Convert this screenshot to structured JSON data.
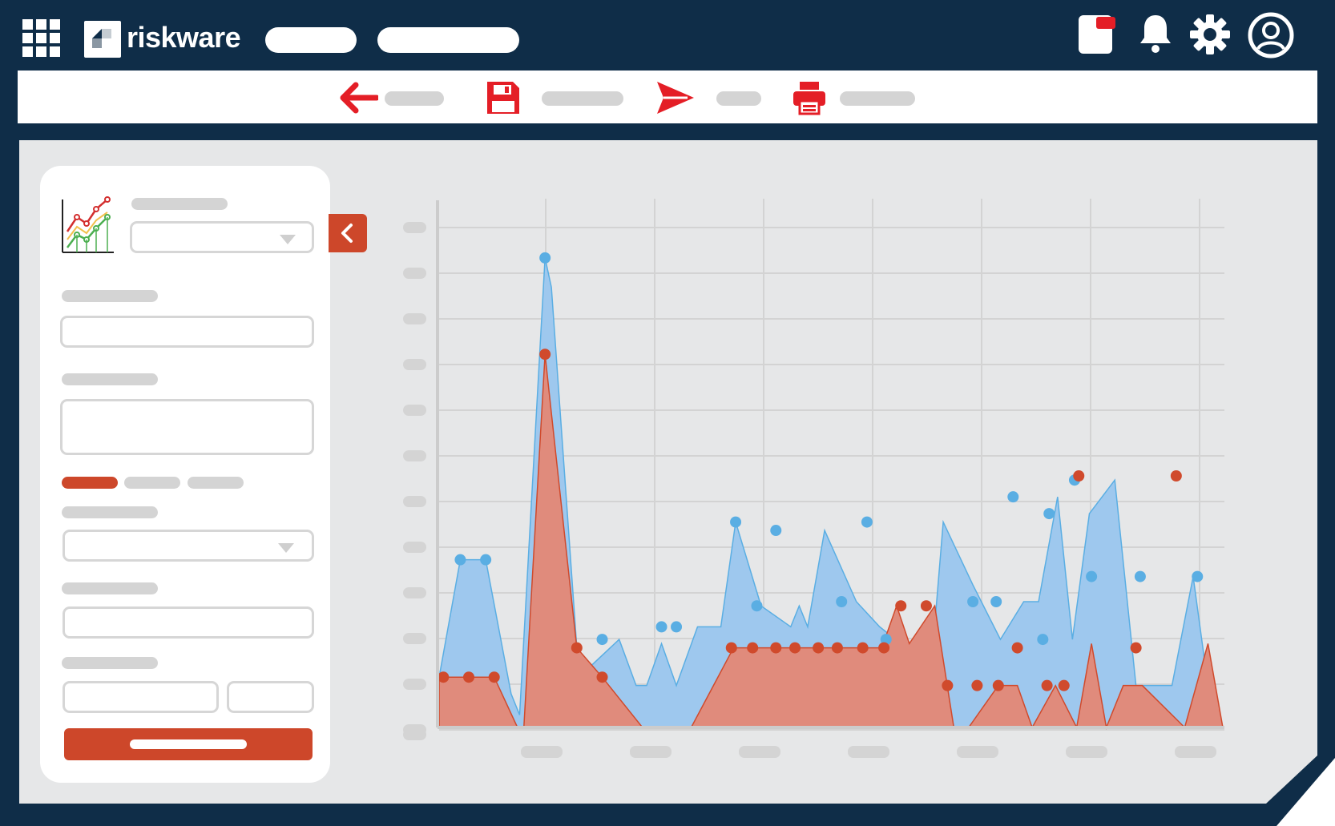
{
  "app": {
    "brand_name": "riskware"
  },
  "header_icons": [
    "grid-icon",
    "window-icon",
    "bell-icon",
    "gear-icon",
    "user-circle-icon"
  ],
  "toolbar_icons": [
    "back-arrow-icon",
    "save-icon",
    "send-icon",
    "print-icon"
  ],
  "colors": {
    "navy": "#0f2d48",
    "accent": "#cd472a",
    "toolbar_red": "#e41e26",
    "series_blue": "#5aaee3",
    "series_blue_fill": "#9ec8ee",
    "series_red": "#d04a2c",
    "series_red_fill": "#e08b7c"
  },
  "panel_tabs": {
    "active_index": 0,
    "count": 3
  },
  "chart_data": {
    "type": "area",
    "ylim": [
      0,
      12
    ],
    "xlim": [
      0,
      37
    ],
    "grid": true,
    "series": [
      {
        "color": "#5aaee3",
        "fill": "#9ec8ee",
        "x": [
          0,
          1,
          2.2,
          3.4,
          3.8,
          5,
          5.3,
          6.6,
          8.5,
          9.3,
          9.8,
          10.5,
          11.2,
          12.2,
          13.3,
          14,
          15.2,
          16.6,
          17,
          17.4,
          18.2,
          19.7,
          20.8,
          21.8,
          23,
          23.8,
          25.2,
          26.5,
          27.6,
          28.3,
          29.2,
          29.9,
          30.7,
          31.9,
          32.9,
          33.6,
          34.6,
          35.6,
          36.3,
          36.8
        ],
        "y": [
          1.2,
          4,
          4,
          0.8,
          0.3,
          11.2,
          10.5,
          1.2,
          2.1,
          1,
          1,
          2,
          1,
          2.4,
          2.4,
          4.9,
          2.9,
          2.4,
          2.9,
          2.4,
          4.7,
          3,
          2.4,
          2,
          0,
          4.9,
          3.4,
          2.1,
          3,
          3,
          5.5,
          2.1,
          5.1,
          5.9,
          1,
          1,
          1,
          3.6,
          1,
          0
        ]
      },
      {
        "color": "#d04a2c",
        "fill": "#e08b7c",
        "x": [
          0,
          1.2,
          2.6,
          3.7,
          4,
          5,
          6.5,
          7.7,
          9.6,
          11.9,
          13.9,
          14.9,
          15.9,
          16.9,
          17.9,
          18.9,
          19.9,
          20.9,
          21.6,
          22.2,
          23.4,
          24.3,
          25,
          26.4,
          27.3,
          28,
          29.1,
          30.1,
          30.8,
          31.5,
          32.3,
          33.2,
          35.2,
          36.3,
          37
        ],
        "y": [
          1.2,
          1.2,
          1.2,
          0,
          0,
          8.9,
          1.9,
          1.2,
          0,
          0,
          1.9,
          1.9,
          1.9,
          1.9,
          1.9,
          1.9,
          1.9,
          1.9,
          2.9,
          2,
          2.9,
          0,
          0,
          1,
          1,
          0,
          1,
          0,
          2,
          0,
          1,
          1,
          0,
          2,
          0
        ]
      }
    ],
    "markers": [
      {
        "series": 0,
        "x": [
          1,
          2.2,
          5,
          7.7,
          10.5,
          11.2,
          14,
          15,
          15.9,
          19,
          20.2,
          21.1,
          25.2,
          26.3,
          27.1,
          28.5,
          28.8,
          30,
          30.8,
          33.1,
          35.8
        ],
        "y": [
          4,
          4,
          11.2,
          2.1,
          2.4,
          2.4,
          4.9,
          2.9,
          4.7,
          3,
          4.9,
          2.1,
          3,
          3,
          5.5,
          2.1,
          5.1,
          5.9,
          3.6,
          3.6,
          3.6
        ]
      },
      {
        "series": 1,
        "x": [
          0.2,
          1.4,
          2.6,
          5,
          6.5,
          7.7,
          13.8,
          14.8,
          15.9,
          16.8,
          17.9,
          18.8,
          20,
          21,
          21.8,
          23,
          24,
          25.4,
          26.4,
          27.3,
          28.7,
          29.5,
          30.2,
          32.9,
          34.8
        ],
        "y": [
          1.2,
          1.2,
          1.2,
          8.9,
          1.9,
          1.2,
          1.9,
          1.9,
          1.9,
          1.9,
          1.9,
          1.9,
          1.9,
          1.9,
          2.9,
          2.9,
          1,
          1,
          1,
          1.9,
          1,
          1,
          6,
          1.9,
          6
        ]
      }
    ]
  }
}
